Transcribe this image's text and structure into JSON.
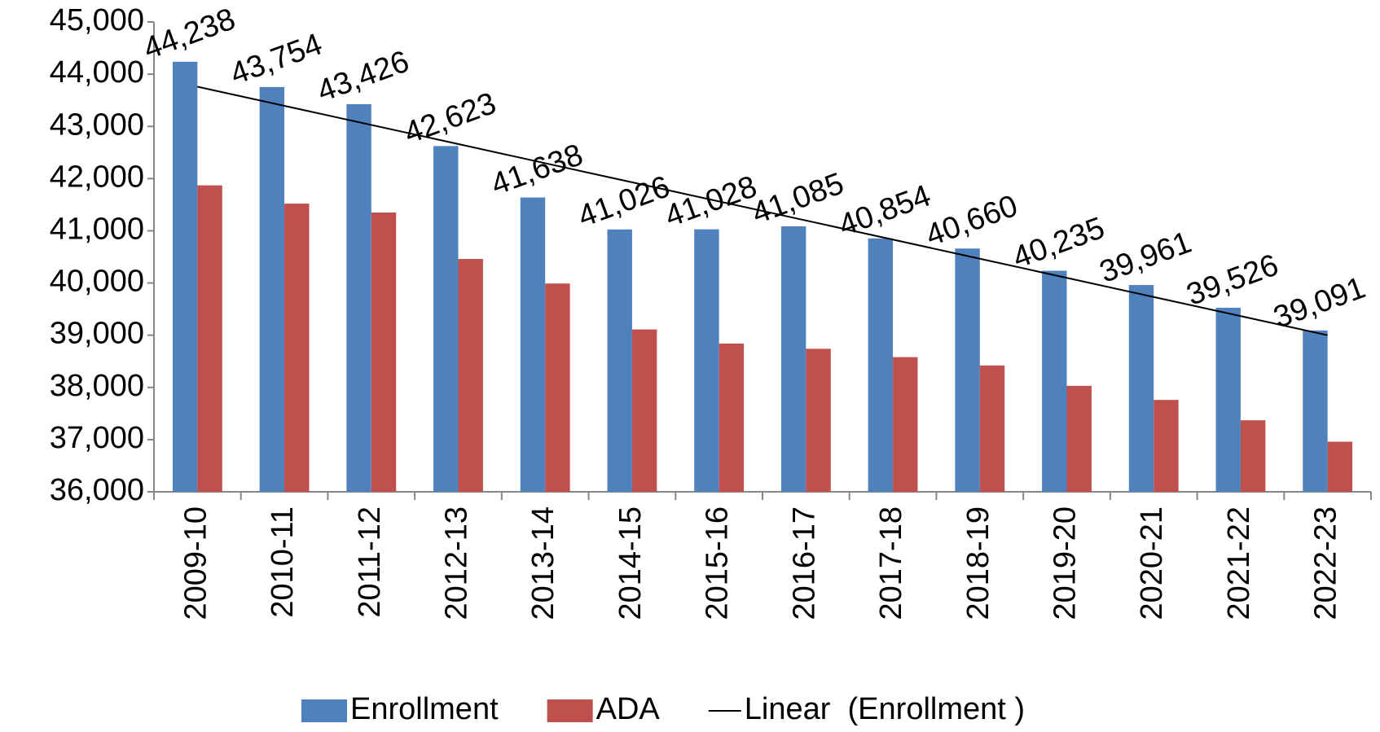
{
  "chart_data": {
    "type": "bar",
    "categories": [
      "2009-10",
      "2010-11",
      "2011-12",
      "2012-13",
      "2013-14",
      "2014-15",
      "2015-16",
      "2016-17",
      "2017-18",
      "2018-19",
      "2019-20",
      "2020-21",
      "2021-22",
      "2022-23"
    ],
    "series": [
      {
        "name": "Enrollment",
        "color": "#4f81bd",
        "values": [
          44238,
          43754,
          43426,
          42623,
          41638,
          41026,
          41028,
          41085,
          40854,
          40660,
          40235,
          39961,
          39526,
          39091
        ],
        "value_labels": [
          "44,238",
          "43,754",
          "43,426",
          "42,623",
          "41,638",
          "41,026",
          "41,028",
          "41,085",
          "40,854",
          "40,660",
          "40,235",
          "39,961",
          "39,526",
          "39,091"
        ]
      },
      {
        "name": "ADA",
        "color": "#c0504d",
        "values": [
          41870,
          41520,
          41350,
          40460,
          39990,
          39110,
          38840,
          38740,
          38580,
          38420,
          38030,
          37760,
          37370,
          36960
        ]
      },
      {
        "name": "Linear  (Enrollment )",
        "type": "line",
        "color": "#000000",
        "values": [
          43760,
          43394,
          43028,
          42662,
          42295,
          41929,
          41563,
          41197,
          40831,
          40465,
          40098,
          39732,
          39366,
          39000
        ]
      }
    ],
    "ylim": [
      36000,
      45000
    ],
    "yticks": [
      {
        "value": 36000,
        "label": "36,000"
      },
      {
        "value": 37000,
        "label": "37,000"
      },
      {
        "value": 38000,
        "label": "38,000"
      },
      {
        "value": 39000,
        "label": "39,000"
      },
      {
        "value": 40000,
        "label": "40,000"
      },
      {
        "value": 41000,
        "label": "41,000"
      },
      {
        "value": 42000,
        "label": "42,000"
      },
      {
        "value": 43000,
        "label": "43,000"
      },
      {
        "value": 44000,
        "label": "44,000"
      },
      {
        "value": 45000,
        "label": "45,000"
      }
    ],
    "grid": false,
    "legend": "bottom"
  }
}
